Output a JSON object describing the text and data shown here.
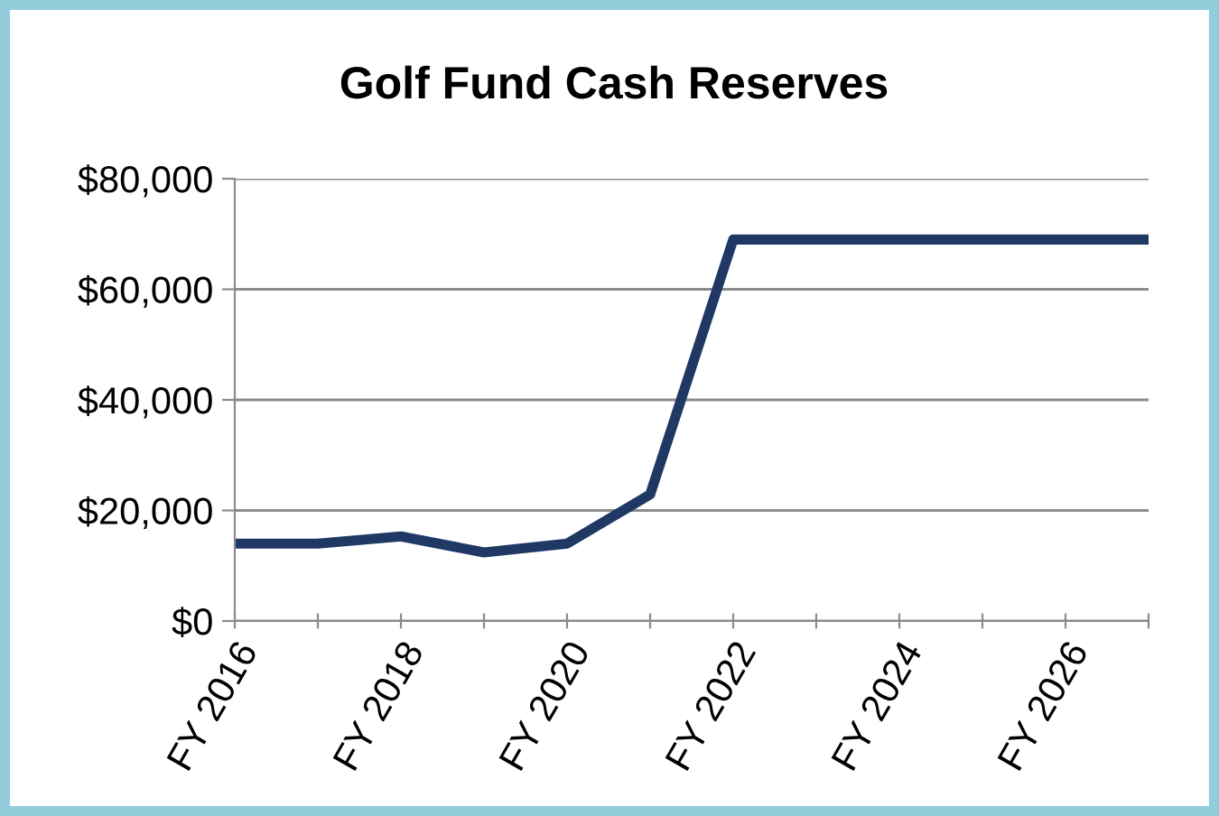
{
  "chart_data": {
    "type": "line",
    "title": "Golf Fund Cash Reserves",
    "categories": [
      "FY 2016",
      null,
      "FY 2018",
      null,
      "FY 2020",
      null,
      "FY 2022",
      null,
      "FY 2024",
      null,
      "FY 2026",
      null
    ],
    "series": [
      {
        "color": "#1f3864",
        "values": [
          14000,
          14000,
          15300,
          12400,
          14000,
          22900,
          69000,
          69000,
          69000,
          69000,
          69000,
          69000
        ]
      }
    ],
    "ylim": [
      0,
      80000
    ],
    "yticks": [
      {
        "value": 0,
        "label": "$0"
      },
      {
        "value": 20000,
        "label": "$20,000"
      },
      {
        "value": 40000,
        "label": "$40,000"
      },
      {
        "value": 60000,
        "label": "$60,000"
      },
      {
        "value": 80000,
        "label": "$80,000"
      }
    ],
    "grid": "y",
    "marker": "none",
    "line_style": "solid"
  }
}
